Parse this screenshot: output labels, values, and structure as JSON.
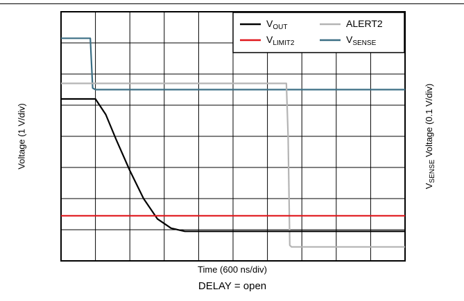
{
  "chart_data": {
    "type": "line",
    "ylabel_left": "Voltage (1 V/div)",
    "ylabel_right": {
      "main": "V",
      "sub": "SENSE",
      "rest": " Voltage (0.1 V/div)"
    },
    "xlabel": "Time (600 ns/div)",
    "caption": "DELAY = open",
    "grid": {
      "x_divisions": 10,
      "y_divisions": 8,
      "visible": true
    },
    "legend": {
      "placement": "top-right",
      "entries": [
        {
          "main": "V",
          "sub": "OUT",
          "color": "#000000"
        },
        {
          "main": "ALERT2",
          "sub": "",
          "color": "#b4b4b4"
        },
        {
          "main": "V",
          "sub": "LIMIT2",
          "color": "#e0161b"
        },
        {
          "main": "V",
          "sub": "SENSE",
          "color": "#3a6e84"
        }
      ]
    },
    "x_unit": "div",
    "y_unit": "div",
    "series": [
      {
        "name": "VSENSE",
        "color": "#3a6e84",
        "x": [
          0,
          0.85,
          0.92,
          1.0,
          10
        ],
        "y": [
          7.15,
          7.15,
          5.55,
          5.5,
          5.5
        ]
      },
      {
        "name": "ALERT2",
        "color": "#b4b4b4",
        "x": [
          0,
          6.55,
          6.6,
          6.65,
          6.7,
          10
        ],
        "y": [
          5.7,
          5.7,
          4.0,
          0.5,
          0.45,
          0.45
        ]
      },
      {
        "name": "VOUT",
        "color": "#000000",
        "x": [
          0,
          1.0,
          1.3,
          1.6,
          2.0,
          2.4,
          2.8,
          3.2,
          3.6,
          10
        ],
        "y": [
          5.2,
          5.2,
          4.7,
          3.9,
          2.9,
          2.0,
          1.35,
          1.05,
          0.95,
          0.95
        ]
      },
      {
        "name": "VLIMIT2",
        "color": "#e0161b",
        "x": [
          0,
          10
        ],
        "y": [
          1.45,
          1.45
        ]
      }
    ]
  }
}
